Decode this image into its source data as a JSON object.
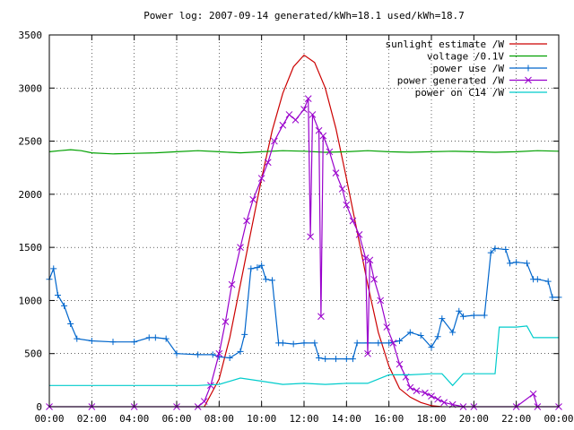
{
  "chart_data": {
    "type": "line",
    "title": "Power log: 2007-09-14 generated/kWh=18.1 used/kWh=18.7",
    "xlabel": "",
    "ylabel": "",
    "xlim": [
      0,
      24
    ],
    "ylim": [
      0,
      3500
    ],
    "x_ticks": [
      "00:00",
      "02:00",
      "04:00",
      "06:00",
      "08:00",
      "10:00",
      "12:00",
      "14:00",
      "16:00",
      "18:00",
      "20:00",
      "22:00",
      "00:00"
    ],
    "y_ticks": [
      0,
      500,
      1000,
      1500,
      2000,
      2500,
      3000,
      3500
    ],
    "grid": true,
    "legend_position": "top-right",
    "series": [
      {
        "name": "sunlight estimate /W",
        "color": "#cc0000",
        "marker": "none",
        "points": [
          [
            7.3,
            0
          ],
          [
            8,
            260
          ],
          [
            8.5,
            650
          ],
          [
            9,
            1150
          ],
          [
            9.5,
            1650
          ],
          [
            10,
            2150
          ],
          [
            10.5,
            2600
          ],
          [
            11,
            2950
          ],
          [
            11.5,
            3200
          ],
          [
            12,
            3310
          ],
          [
            12.5,
            3240
          ],
          [
            13,
            3000
          ],
          [
            13.5,
            2620
          ],
          [
            14,
            2150
          ],
          [
            14.5,
            1650
          ],
          [
            15,
            1150
          ],
          [
            15.5,
            700
          ],
          [
            16,
            380
          ],
          [
            16.5,
            170
          ],
          [
            17,
            90
          ],
          [
            17.5,
            40
          ],
          [
            18,
            10
          ],
          [
            18.5,
            0
          ]
        ]
      },
      {
        "name": "voltage /0.1V",
        "color": "#00a000",
        "marker": "none",
        "points": [
          [
            0,
            2400
          ],
          [
            0.5,
            2410
          ],
          [
            1,
            2420
          ],
          [
            1.5,
            2410
          ],
          [
            2,
            2390
          ],
          [
            3,
            2380
          ],
          [
            4,
            2385
          ],
          [
            5,
            2390
          ],
          [
            6,
            2400
          ],
          [
            7,
            2410
          ],
          [
            8,
            2400
          ],
          [
            9,
            2390
          ],
          [
            10,
            2400
          ],
          [
            11,
            2410
          ],
          [
            12,
            2405
          ],
          [
            13,
            2395
          ],
          [
            14,
            2400
          ],
          [
            15,
            2410
          ],
          [
            16,
            2400
          ],
          [
            17,
            2395
          ],
          [
            18,
            2400
          ],
          [
            19,
            2405
          ],
          [
            20,
            2400
          ],
          [
            21,
            2395
          ],
          [
            22,
            2400
          ],
          [
            23,
            2410
          ],
          [
            24,
            2405
          ]
        ]
      },
      {
        "name": "power use /W",
        "color": "#0066cc",
        "marker": "plus",
        "points": [
          [
            0,
            1200
          ],
          [
            0.2,
            1300
          ],
          [
            0.4,
            1050
          ],
          [
            0.7,
            950
          ],
          [
            1,
            780
          ],
          [
            1.3,
            640
          ],
          [
            2,
            620
          ],
          [
            3,
            610
          ],
          [
            4,
            610
          ],
          [
            4.7,
            650
          ],
          [
            5,
            650
          ],
          [
            5.5,
            640
          ],
          [
            6,
            500
          ],
          [
            7,
            490
          ],
          [
            7.7,
            490
          ],
          [
            8,
            470
          ],
          [
            8.5,
            460
          ],
          [
            9,
            520
          ],
          [
            9.2,
            680
          ],
          [
            9.5,
            1300
          ],
          [
            9.8,
            1310
          ],
          [
            10,
            1330
          ],
          [
            10.2,
            1200
          ],
          [
            10.5,
            1190
          ],
          [
            10.8,
            600
          ],
          [
            11,
            600
          ],
          [
            11.5,
            590
          ],
          [
            12,
            600
          ],
          [
            12.5,
            600
          ],
          [
            12.7,
            460
          ],
          [
            13,
            450
          ],
          [
            13.5,
            450
          ],
          [
            14,
            450
          ],
          [
            14.3,
            450
          ],
          [
            14.5,
            600
          ],
          [
            15,
            600
          ],
          [
            15.5,
            600
          ],
          [
            16,
            600
          ],
          [
            16.5,
            620
          ],
          [
            17,
            700
          ],
          [
            17.5,
            670
          ],
          [
            18,
            560
          ],
          [
            18.3,
            660
          ],
          [
            18.5,
            830
          ],
          [
            19,
            700
          ],
          [
            19.3,
            900
          ],
          [
            19.5,
            850
          ],
          [
            20,
            860
          ],
          [
            20.5,
            860
          ],
          [
            20.8,
            1450
          ],
          [
            21,
            1490
          ],
          [
            21.5,
            1480
          ],
          [
            21.7,
            1350
          ],
          [
            22,
            1360
          ],
          [
            22.5,
            1350
          ],
          [
            22.8,
            1200
          ],
          [
            23,
            1200
          ],
          [
            23.5,
            1180
          ],
          [
            23.7,
            1030
          ],
          [
            24,
            1030
          ]
        ]
      },
      {
        "name": "power generated /W",
        "color": "#9900cc",
        "marker": "cross",
        "points": [
          [
            0,
            0
          ],
          [
            2,
            0
          ],
          [
            4,
            0
          ],
          [
            6,
            0
          ],
          [
            7,
            0
          ],
          [
            7.3,
            50
          ],
          [
            7.6,
            200
          ],
          [
            8,
            500
          ],
          [
            8.3,
            800
          ],
          [
            8.6,
            1150
          ],
          [
            9,
            1500
          ],
          [
            9.3,
            1750
          ],
          [
            9.6,
            1950
          ],
          [
            10,
            2150
          ],
          [
            10.3,
            2300
          ],
          [
            10.6,
            2500
          ],
          [
            11,
            2650
          ],
          [
            11.3,
            2750
          ],
          [
            11.6,
            2700
          ],
          [
            12,
            2800
          ],
          [
            12.2,
            2900
          ],
          [
            12.3,
            1600
          ],
          [
            12.4,
            2750
          ],
          [
            12.7,
            2600
          ],
          [
            12.8,
            850
          ],
          [
            12.9,
            2550
          ],
          [
            13.2,
            2400
          ],
          [
            13.5,
            2200
          ],
          [
            13.8,
            2050
          ],
          [
            14,
            1900
          ],
          [
            14.3,
            1750
          ],
          [
            14.6,
            1620
          ],
          [
            14.9,
            1400
          ],
          [
            15,
            500
          ],
          [
            15.1,
            1380
          ],
          [
            15.3,
            1200
          ],
          [
            15.6,
            1000
          ],
          [
            15.9,
            750
          ],
          [
            16.2,
            600
          ],
          [
            16.5,
            400
          ],
          [
            16.8,
            280
          ],
          [
            17,
            180
          ],
          [
            17.3,
            150
          ],
          [
            17.7,
            130
          ],
          [
            18,
            100
          ],
          [
            18.3,
            70
          ],
          [
            18.6,
            40
          ],
          [
            19,
            20
          ],
          [
            19.5,
            0
          ],
          [
            20,
            0
          ],
          [
            22,
            0
          ],
          [
            22.8,
            120
          ],
          [
            23,
            0
          ],
          [
            24,
            0
          ]
        ]
      },
      {
        "name": "power on C14 /W",
        "color": "#00cccc",
        "marker": "none",
        "points": [
          [
            0,
            200
          ],
          [
            2,
            200
          ],
          [
            4,
            200
          ],
          [
            6,
            200
          ],
          [
            7,
            200
          ],
          [
            8,
            210
          ],
          [
            9,
            270
          ],
          [
            10,
            240
          ],
          [
            11,
            210
          ],
          [
            12,
            220
          ],
          [
            13,
            210
          ],
          [
            14,
            220
          ],
          [
            15,
            220
          ],
          [
            16,
            300
          ],
          [
            17,
            300
          ],
          [
            18,
            310
          ],
          [
            18.5,
            310
          ],
          [
            19,
            200
          ],
          [
            19.5,
            310
          ],
          [
            20,
            310
          ],
          [
            21,
            310
          ],
          [
            21.2,
            750
          ],
          [
            22,
            750
          ],
          [
            22.5,
            760
          ],
          [
            22.8,
            650
          ],
          [
            23,
            650
          ],
          [
            24,
            650
          ]
        ]
      }
    ]
  }
}
